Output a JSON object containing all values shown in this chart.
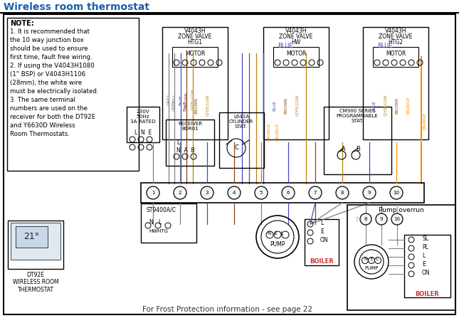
{
  "title": "Wireless room thermostat",
  "title_color": "#1a5fa8",
  "bg_color": "#ffffff",
  "border_color": "#000000",
  "note_text": "NOTE:",
  "note_lines": [
    "1. It is recommended that",
    "the 10 way junction box",
    "should be used to ensure",
    "first time, fault free wiring.",
    "2. If using the V4043H1080",
    "(1\" BSP) or V4043H1106",
    "(28mm), the white wire",
    "must be electrically isolated.",
    "3. The same terminal",
    "numbers are used on the",
    "receiver for both the DT92E",
    "and Y6630D Wireless",
    "Room Thermostats."
  ],
  "valve_labels": [
    "V4043H\nZONE VALVE\nHTG1",
    "V4043H\nZONE VALVE\nHW",
    "V4043H\nZONE VALVE\nHTG2"
  ],
  "wire_colors": {
    "grey": "#808080",
    "blue": "#4444cc",
    "brown": "#8B4513",
    "gyellow": "#b8860b",
    "orange": "#FF8C00"
  },
  "frost_text": "For Frost Protection information - see page 22",
  "pump_overrun_label": "Pump overrun",
  "dt92e_label": "DT92E\nWIRELESS ROOM\nTHERMOSTAT",
  "boiler_label": "BOILER",
  "pump_label": "PUMP",
  "receiver_label": "RECEIVER\nBOR01",
  "cylinder_stat_label": "L641A\nCYLINDER\nSTAT.",
  "cm900_label": "CM900 SERIES\nPROGRAMMABLE\nSTAT.",
  "st9400_label": "ST9400A/C",
  "hw_htg_label": "HWHTG",
  "rated_label": "230V\n50Hz\n3A RATED",
  "lne_label": "L  N  E",
  "terminal_numbers": [
    "1",
    "2",
    "3",
    "4",
    "5",
    "6",
    "7",
    "8",
    "9",
    "10"
  ],
  "nel_labels": [
    "N",
    "E",
    "L"
  ],
  "boiler_connections": [
    "L",
    "E",
    "ON"
  ],
  "boiler2_connections": [
    "SL",
    "PL",
    "L",
    "E",
    "ON"
  ]
}
